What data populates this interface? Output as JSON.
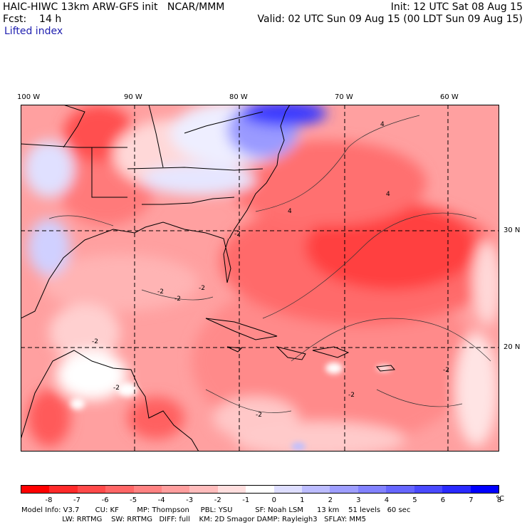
{
  "header": {
    "line1_left": "HAIC-HIWC 13km ARW-GFS init   NCAR/MMM",
    "line1_right": "Init: 12 UTC Sat 08 Aug 15",
    "line2_left": "Fcst:    14 h",
    "line2_right": "Valid: 02 UTC Sun 09 Aug 15 (00 LDT Sun 09 Aug 15)",
    "field_name": "Lifted index"
  },
  "map": {
    "lon_labels": [
      "100 W",
      "90 W",
      "80 W",
      "70 W",
      "60 W"
    ],
    "lat_labels": [
      "30 N",
      "20 N"
    ],
    "contour_labels": [
      "4",
      "4",
      "4",
      "-2",
      "-2",
      "-2",
      "-2",
      "-2",
      "-2",
      "-2",
      "-2",
      "-2"
    ]
  },
  "colorbar": {
    "colors": [
      "#ff0000",
      "#ff2a2a",
      "#ff4a4a",
      "#ff6666",
      "#ff8282",
      "#ff9e9e",
      "#ffbcbc",
      "#ffdede",
      "#ffffff",
      "#dedeff",
      "#bcbcff",
      "#9e9eff",
      "#8282ff",
      "#6666ff",
      "#4a4aff",
      "#2a2aff",
      "#0000ff"
    ],
    "tick_labels": [
      "-8",
      "-7",
      "-6",
      "-5",
      "-4",
      "-3",
      "-2",
      "-1",
      "0",
      "1",
      "2",
      "3",
      "4",
      "5",
      "6",
      "7",
      "8"
    ],
    "unit": "°C"
  },
  "footer": {
    "line1": "Model Info: V3.7       CU: KF        MP: Thompson     PBL: YSU          SF: Noah LSM      13 km    51 levels   60 sec",
    "line2": "                  LW: RRTMG    SW: RRTMG   DIFF: full    KM: 2D Smagor DAMP: Rayleigh3   SFLAY: MM5"
  }
}
